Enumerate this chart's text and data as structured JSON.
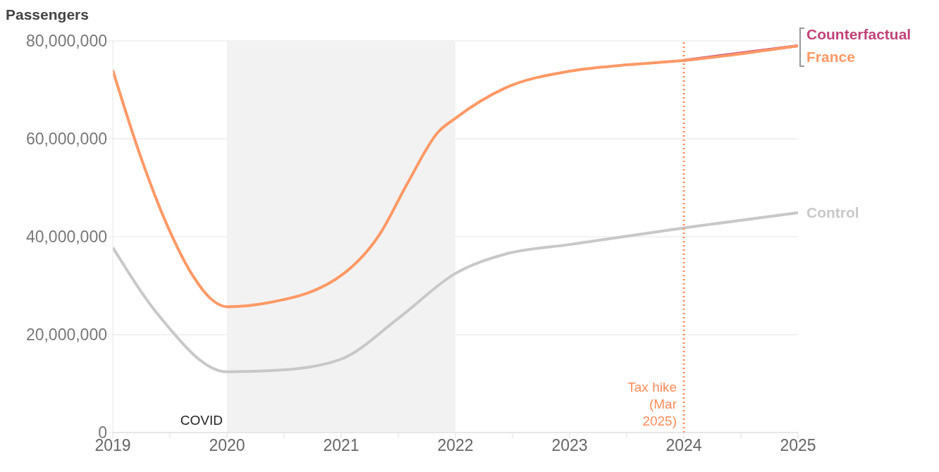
{
  "chart_data": {
    "type": "line",
    "ylabel": "Passengers",
    "x": [
      2019,
      2019.24,
      2019.41,
      2019.49,
      2019.71,
      2019.85,
      2020,
      2020.36,
      2020.5,
      2021,
      2021.03,
      2021.34,
      2021.52,
      2021.58,
      2021.85,
      2022,
      2022.43,
      2023,
      2023.04,
      2023.5,
      2024,
      2025
    ],
    "series": [
      {
        "name": "Counterfactual",
        "color": "#c0437a",
        "values": [
          null,
          null,
          null,
          null,
          null,
          null,
          null,
          null,
          null,
          null,
          null,
          null,
          null,
          null,
          null,
          null,
          null,
          null,
          null,
          null,
          76000000,
          79000000
        ]
      },
      {
        "name": "France",
        "color": "#ff9966",
        "values": [
          74000000,
          56600000,
          null,
          41600000,
          31700000,
          27500000,
          25700000,
          26500000,
          null,
          null,
          32600000,
          40600000,
          null,
          50900000,
          61400000,
          64200000,
          70300000,
          73800000,
          null,
          75100000,
          76000000,
          79000000
        ]
      },
      {
        "name": "Control",
        "color": "#c8c8c8",
        "values": [
          37800000,
          null,
          23700000,
          null,
          null,
          null,
          12400000,
          null,
          12800000,
          15000000,
          null,
          null,
          23700000,
          null,
          null,
          32500000,
          36400000,
          38400000,
          null,
          null,
          41800000,
          44900000
        ]
      }
    ],
    "xlim": [
      2019,
      2025
    ],
    "xticks": [
      2019,
      {
        "value": 2019.5,
        "label": null
      },
      2020,
      {
        "value": 2020.5,
        "label": null
      },
      2021,
      {
        "value": 2021.5,
        "label": null
      },
      2022,
      {
        "value": 2022.5,
        "label": null
      },
      2023,
      {
        "value": 2023.5,
        "label": null
      },
      2024,
      {
        "value": 2024.5,
        "label": null
      },
      2025
    ],
    "ylim": [
      0,
      80000000
    ],
    "yticks": [
      {
        "value": 0,
        "label": "0"
      },
      {
        "value": 20000000,
        "label": "20,000,000"
      },
      {
        "value": 40000000,
        "label": "40,000,000"
      },
      {
        "value": 60000000,
        "label": "60,000,000"
      },
      {
        "value": 80000000,
        "label": "80,000,000"
      }
    ],
    "grid": "y",
    "line_style": "solid",
    "marker": "none",
    "ref_lines": [
      {
        "axis": "x",
        "value": 2024,
        "label": "Tax hike (Mar 2025)",
        "color": "#ff8c5a",
        "line_style": "dotted"
      }
    ],
    "bands": [
      {
        "axis": "x",
        "from": 2020,
        "to": 2022,
        "label": "COVID",
        "color": "#f2f2f2"
      }
    ]
  }
}
